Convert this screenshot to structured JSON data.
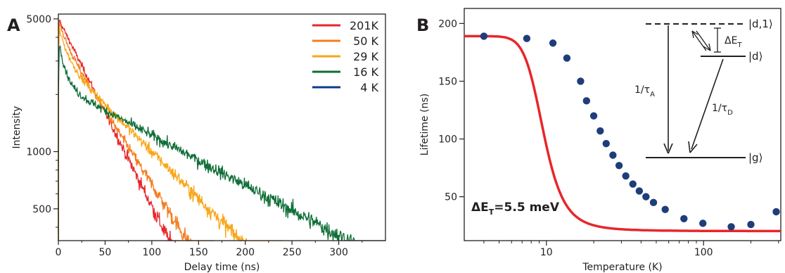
{
  "chart_data": [
    {
      "panel_label": "A",
      "type": "line",
      "xlabel": "Delay time (ns)",
      "ylabel": "Intensity",
      "yscale": "log",
      "xlim": [
        0,
        350
      ],
      "ylim": [
        340,
        5300
      ],
      "xticks": [
        0,
        50,
        100,
        150,
        200,
        250,
        300
      ],
      "yticks": [
        500,
        1000,
        5000
      ],
      "legend_position": "top-right",
      "series": [
        {
          "name": "201K",
          "color": "#e8262b",
          "peak": 4900,
          "tau1": 6,
          "a1": 0.0,
          "tau2": 44,
          "end": 130
        },
        {
          "name": "50 K",
          "color": "#f47d20",
          "peak": 4800,
          "tau1": 8,
          "a1": 0.18,
          "tau2": 56,
          "end": 180
        },
        {
          "name": "29 K",
          "color": "#f9a61a",
          "peak": 4400,
          "tau1": 9,
          "a1": 0.3,
          "tau2": 88,
          "end": 300
        },
        {
          "name": "16 K",
          "color": "#0f6e37",
          "peak": 3700,
          "tau1": 7,
          "a1": 0.4,
          "tau2": 165,
          "end": 350
        },
        {
          "name": "4 K",
          "color": "#0b3c8c",
          "peak": 2700,
          "tau1": 4,
          "a1": 0.25,
          "tau2": 177,
          "end": 350
        }
      ]
    },
    {
      "panel_label": "B",
      "type": "scatter",
      "xlabel": "Temperature (K)",
      "ylabel": "Lifetime (ns)",
      "xscale": "log",
      "xlim": [
        3,
        310
      ],
      "ylim": [
        12,
        213
      ],
      "xticks": [
        10,
        100
      ],
      "yticks": [
        50,
        100,
        150,
        200
      ],
      "points_color": "#1f3d7a",
      "fit_color": "#e8262b",
      "points": [
        [
          4,
          189
        ],
        [
          7.5,
          187
        ],
        [
          11,
          183
        ],
        [
          13.5,
          170
        ],
        [
          16.5,
          150
        ],
        [
          18,
          133
        ],
        [
          20,
          120
        ],
        [
          22,
          107
        ],
        [
          24,
          96
        ],
        [
          26.5,
          86
        ],
        [
          29,
          77
        ],
        [
          32,
          68
        ],
        [
          35.5,
          61
        ],
        [
          39,
          55
        ],
        [
          43,
          50
        ],
        [
          48,
          45
        ],
        [
          57,
          39
        ],
        [
          75,
          31
        ],
        [
          99,
          27
        ],
        [
          150,
          24
        ],
        [
          200,
          26
        ],
        [
          290,
          37
        ]
      ],
      "fit": {
        "tau_low": 189,
        "tau_high": 20,
        "ratio": 80,
        "deltaE_meV": 5.5
      },
      "annotation": {
        "prefix": "ΔE",
        "subscript": "T",
        "value": "=5.5 meV"
      },
      "inset": {
        "levels": [
          "|d,1⟩",
          "|d⟩",
          "|g⟩"
        ],
        "rate_A": {
          "prefix": "1/τ",
          "subscript": "A"
        },
        "rate_D": {
          "prefix": "1/τ",
          "subscript": "D"
        },
        "gap": {
          "prefix": "ΔE",
          "subscript": "T"
        }
      }
    }
  ]
}
